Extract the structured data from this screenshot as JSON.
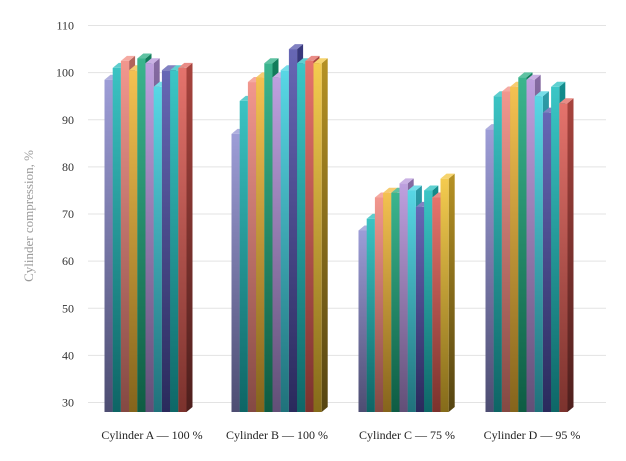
{
  "chart_data": {
    "type": "bar",
    "style": "3d-clustered-columns",
    "ylabel": "Cylinder compression, %",
    "xlabel": "",
    "ylim": [
      28,
      110
    ],
    "yticks": [
      30,
      40,
      50,
      60,
      70,
      80,
      90,
      100,
      110
    ],
    "grid": true,
    "legend": "none",
    "categories": [
      "Cylinder A — 100 %",
      "Cylinder B — 100 %",
      "Cylinder C — 75 %",
      "Cylinder D — 95 %"
    ],
    "series": [
      {
        "color": "#8c8cd0",
        "values": [
          98.5,
          87,
          66.5,
          88
        ]
      },
      {
        "color": "#19b8b8",
        "values": [
          101,
          94,
          69,
          95
        ]
      },
      {
        "color": "#f0857a",
        "values": [
          102.5,
          98,
          73.5,
          96
        ]
      },
      {
        "color": "#f2b632",
        "values": [
          100.5,
          99,
          74.5,
          97
        ]
      },
      {
        "color": "#19a87a",
        "values": [
          103,
          102,
          74.5,
          99
        ]
      },
      {
        "color": "#b38fd9",
        "values": [
          102,
          99,
          76.5,
          98.5
        ]
      },
      {
        "color": "#3bd0e0",
        "values": [
          97,
          100.5,
          75,
          95
        ]
      },
      {
        "color": "#4c4ca8",
        "values": [
          100.5,
          105,
          71.5,
          91.5
        ]
      },
      {
        "color": "#19bcbc",
        "values": [
          100.5,
          102,
          75,
          97
        ]
      },
      {
        "color": "#e05a52",
        "values": [
          101,
          102.5,
          73.5,
          93.5
        ]
      },
      {
        "color": "#f2c230",
        "values": [
          null,
          102,
          77.5,
          null
        ]
      }
    ]
  }
}
